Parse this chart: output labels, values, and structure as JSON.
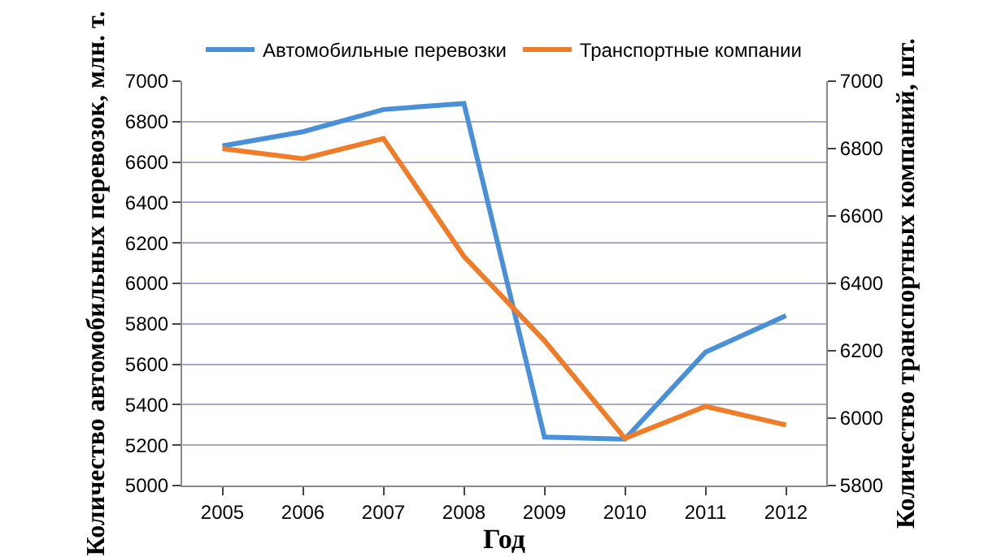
{
  "chart_data": {
    "type": "line",
    "xlabel": "Год",
    "ylabel": "Количество автомобильных перевозок, млн. т.",
    "y2label": "Количество транспортных компаний, шт.",
    "categories": [
      "2005",
      "2006",
      "2007",
      "2008",
      "2009",
      "2010",
      "2011",
      "2012"
    ],
    "series": [
      {
        "name": "Автомобильные перевозки",
        "color": "#4a90d9",
        "values": [
          6680,
          6750,
          6860,
          6890,
          5240,
          5230,
          5660,
          5840
        ]
      },
      {
        "name": "Транспортные компании",
        "color": "#f07c28",
        "axis": "y2",
        "values": [
          6800,
          6770,
          6830,
          6480,
          6230,
          5940,
          6035,
          5980
        ]
      }
    ],
    "ylim": [
      5000,
      7000
    ],
    "yticks": [
      5000,
      5200,
      5400,
      5600,
      5800,
      6000,
      6200,
      6400,
      6600,
      6800,
      7000
    ],
    "y2lim": [
      5800,
      7000
    ],
    "y2ticks": [
      5800,
      6000,
      6200,
      6400,
      6600,
      6800,
      7000
    ],
    "grid": "y",
    "legend": "top",
    "marker": "none",
    "line_style": "solid"
  }
}
